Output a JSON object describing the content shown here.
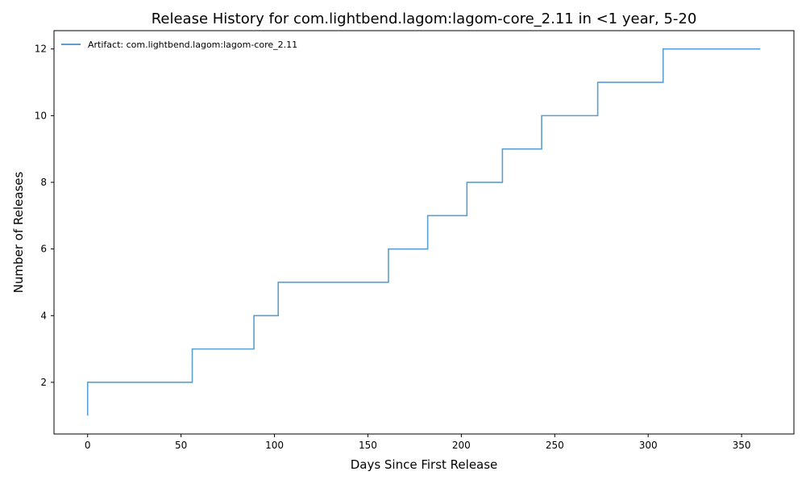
{
  "chart_data": {
    "type": "line",
    "step": "post",
    "title": "Release History for com.lightbend.lagom:lagom-core_2.11 in <1 year, 5-20",
    "xlabel": "Days Since First Release",
    "ylabel": "Number of Releases",
    "xlim": [
      -18,
      378
    ],
    "ylim": [
      0.45,
      12.55
    ],
    "xticks": [
      0,
      50,
      100,
      150,
      200,
      250,
      300,
      350
    ],
    "yticks": [
      2,
      4,
      6,
      8,
      10,
      12
    ],
    "grid": false,
    "legend_position": "upper-left",
    "series": [
      {
        "name": "Artifact: com.lightbend.lagom:lagom-core_2.11",
        "color": "#5b9fce",
        "x": [
          0,
          0,
          56,
          89,
          102,
          161,
          182,
          203,
          222,
          243,
          273,
          308,
          360
        ],
        "y": [
          1,
          2,
          3,
          4,
          5,
          6,
          7,
          8,
          9,
          10,
          11,
          12,
          12
        ]
      }
    ]
  }
}
